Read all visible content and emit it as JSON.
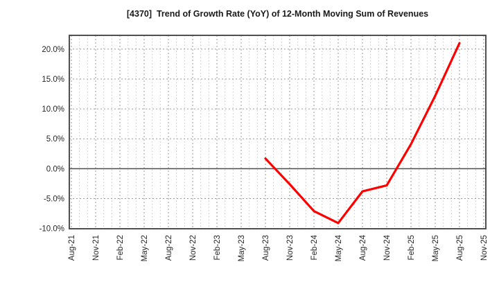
{
  "figure": {
    "title": "[4370]  Trend of Growth Rate (YoY) of 12-Month Moving Sum of Revenues"
  },
  "chart_data": {
    "type": "line",
    "title": "[4370]  Trend of Growth Rate (YoY) of 12-Month Moving Sum of Revenues",
    "xlabel": "",
    "ylabel": "",
    "x_tick_labels": [
      "Aug-21",
      "Nov-21",
      "Feb-22",
      "May-22",
      "Aug-22",
      "Nov-22",
      "Feb-23",
      "May-23",
      "Aug-23",
      "Nov-23",
      "Feb-24",
      "May-24",
      "Aug-24",
      "Nov-24",
      "Feb-25",
      "May-25",
      "Aug-25",
      "Nov-25"
    ],
    "months_between_ticks": 3,
    "y_ticks": [
      20,
      15,
      10,
      5,
      0,
      -5,
      -10
    ],
    "y_tick_labels": [
      "20.0%",
      "15.0%",
      "10.0%",
      "5.0%",
      "0.0%",
      "-5.0%",
      "-10.0%"
    ],
    "ylim": [
      -10.05,
      22.3
    ],
    "grid": true,
    "legend": false,
    "zero_line": true,
    "series": [
      {
        "color": "#ff0000",
        "points": [
          {
            "x": "Aug-23",
            "y": 1.7
          },
          {
            "x": "Nov-23",
            "y": -2.6
          },
          {
            "x": "Feb-24",
            "y": -7.1
          },
          {
            "x": "May-24",
            "y": -9.1
          },
          {
            "x": "Aug-24",
            "y": -3.8
          },
          {
            "x": "Nov-24",
            "y": -2.8
          },
          {
            "x": "Feb-25",
            "y": 4.1
          },
          {
            "x": "May-25",
            "y": 12.2
          },
          {
            "x": "Aug-25",
            "y": 21.0
          }
        ]
      }
    ]
  },
  "colors": {
    "background": "#ffffff",
    "line": "#ff0000",
    "axis_border": "#3c3c3c",
    "zero_line": "#4d4d4d",
    "grid_major": "#9a9a9a",
    "grid_minor": "#c6c6c6",
    "tick_text": "#262626",
    "title_text": "#1a1a1a"
  }
}
